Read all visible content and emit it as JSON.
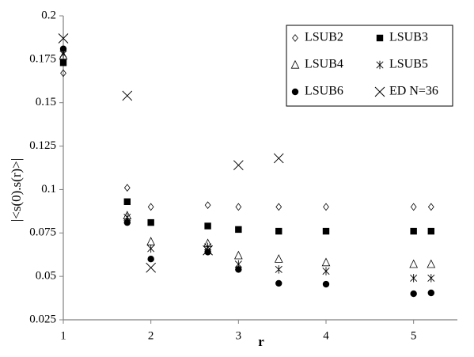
{
  "chart_data": {
    "type": "scatter",
    "x_label": "r",
    "y_label": "|<s(0).s(r)>|",
    "x": [
      1,
      1.73,
      2,
      2.65,
      3,
      3.46,
      4,
      5,
      5.2
    ],
    "series": [
      {
        "name": "LSUB2",
        "color": "#000000",
        "marker": "diamond",
        "values": [
          0.167,
          0.101,
          0.09,
          0.091,
          0.09,
          0.09,
          0.09,
          0.09,
          0.09
        ]
      },
      {
        "name": "LSUB3",
        "color": "#000000",
        "marker": "square",
        "values": [
          0.173,
          0.093,
          0.081,
          0.079,
          0.077,
          0.076,
          0.076,
          0.076,
          0.076
        ]
      },
      {
        "name": "LSUB4",
        "color": "#000000",
        "marker": "triangle",
        "values": [
          0.177,
          0.085,
          0.07,
          0.069,
          0.062,
          0.06,
          0.058,
          0.057,
          0.057
        ]
      },
      {
        "name": "LSUB5",
        "color": "#000000",
        "marker": "asterisk",
        "values": [
          0.178,
          0.084,
          0.066,
          0.067,
          0.057,
          0.054,
          0.053,
          0.049,
          0.049
        ]
      },
      {
        "name": "LSUB6",
        "color": "#000000",
        "marker": "circle",
        "values": [
          0.181,
          0.081,
          0.06,
          0.064,
          0.054,
          0.046,
          0.0455,
          0.04,
          0.0405
        ]
      },
      {
        "name": "ED N=36",
        "color": "#000000",
        "marker": "cross",
        "x": [
          1,
          1.73,
          2,
          2.65,
          3,
          3.46
        ],
        "values": [
          0.187,
          0.154,
          0.055,
          0.065,
          0.114,
          0.118
        ]
      }
    ],
    "xlim": [
      1,
      5.5
    ],
    "xticks": [
      1,
      2,
      3,
      4,
      5
    ],
    "ylim": [
      0.025,
      0.2
    ],
    "yticks": [
      0.025,
      0.05,
      0.075,
      0.1,
      0.125,
      0.15,
      0.175,
      0.2
    ],
    "legend": "upper right"
  }
}
